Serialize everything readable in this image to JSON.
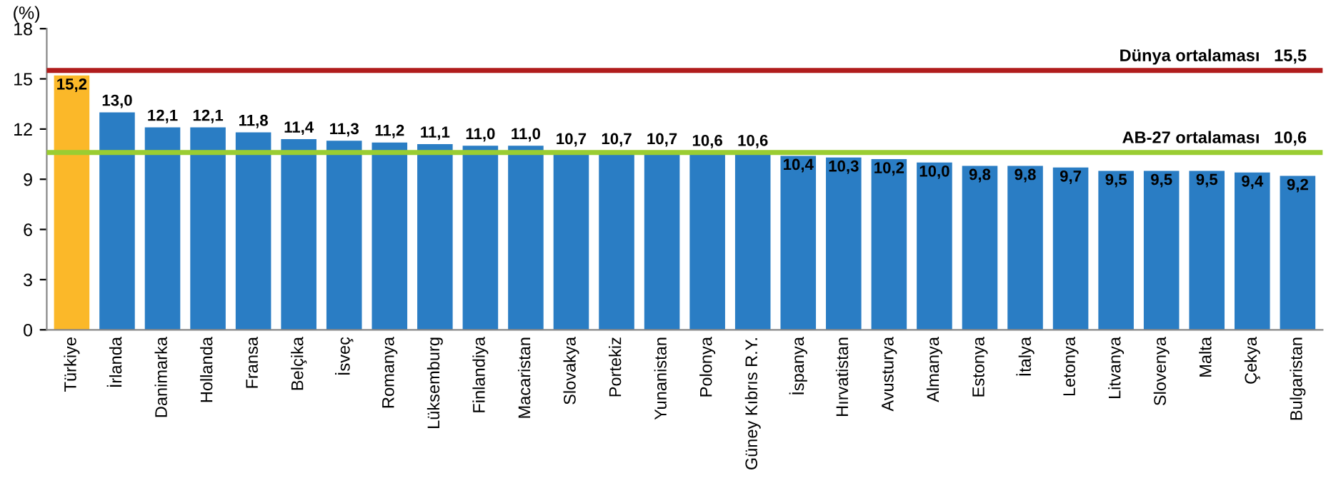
{
  "chart_data": {
    "type": "bar",
    "ylabel": "(%)",
    "categories": [
      "Türkiye",
      "İrlanda",
      "Danimarka",
      "Hollanda",
      "Fransa",
      "Belçika",
      "İsveç",
      "Romanya",
      "Lüksemburg",
      "Finlandiya",
      "Macaristan",
      "Slovakya",
      "Portekiz",
      "Yunanistan",
      "Polonya",
      "Güney Kıbrıs R.Y.",
      "İspanya",
      "Hırvatistan",
      "Avusturya",
      "Almanya",
      "Estonya",
      "İtalya",
      "Letonya",
      "Litvanya",
      "Slovenya",
      "Malta",
      "Çekya",
      "Bulgaristan"
    ],
    "values": [
      15.2,
      13.0,
      12.1,
      12.1,
      11.8,
      11.4,
      11.3,
      11.2,
      11.1,
      11.0,
      11.0,
      10.7,
      10.7,
      10.7,
      10.6,
      10.6,
      10.4,
      10.3,
      10.2,
      10.0,
      9.8,
      9.8,
      9.7,
      9.5,
      9.5,
      9.5,
      9.4,
      9.2
    ],
    "value_labels": [
      "15,2",
      "13,0",
      "12,1",
      "12,1",
      "11,8",
      "11,4",
      "11,3",
      "11,2",
      "11,1",
      "11,0",
      "11,0",
      "10,7",
      "10,7",
      "10,7",
      "10,6",
      "10,6",
      "10,4",
      "10,3",
      "10,2",
      "10,0",
      "9,8",
      "9,8",
      "9,7",
      "9,5",
      "9,5",
      "9,5",
      "9,4",
      "9,2"
    ],
    "colors": [
      "#fbb829",
      "#2a7dc4",
      "#2a7dc4",
      "#2a7dc4",
      "#2a7dc4",
      "#2a7dc4",
      "#2a7dc4",
      "#2a7dc4",
      "#2a7dc4",
      "#2a7dc4",
      "#2a7dc4",
      "#2a7dc4",
      "#2a7dc4",
      "#2a7dc4",
      "#2a7dc4",
      "#2a7dc4",
      "#2a7dc4",
      "#2a7dc4",
      "#2a7dc4",
      "#2a7dc4",
      "#2a7dc4",
      "#2a7dc4",
      "#2a7dc4",
      "#2a7dc4",
      "#2a7dc4",
      "#2a7dc4",
      "#2a7dc4",
      "#2a7dc4"
    ],
    "ylim": [
      0,
      18
    ],
    "yticks": [
      0,
      3,
      6,
      9,
      12,
      15,
      18
    ],
    "grid": false,
    "legend": false,
    "ref_lines": [
      {
        "axis": "y",
        "value": 15.5,
        "label": "Dünya ortalaması   15,5",
        "color": "#b01c1c",
        "line_style": "solid"
      },
      {
        "axis": "y",
        "value": 10.6,
        "label": "AB-27 ortalaması   10,6",
        "color": "#9acd32",
        "line_style": "solid"
      }
    ]
  }
}
